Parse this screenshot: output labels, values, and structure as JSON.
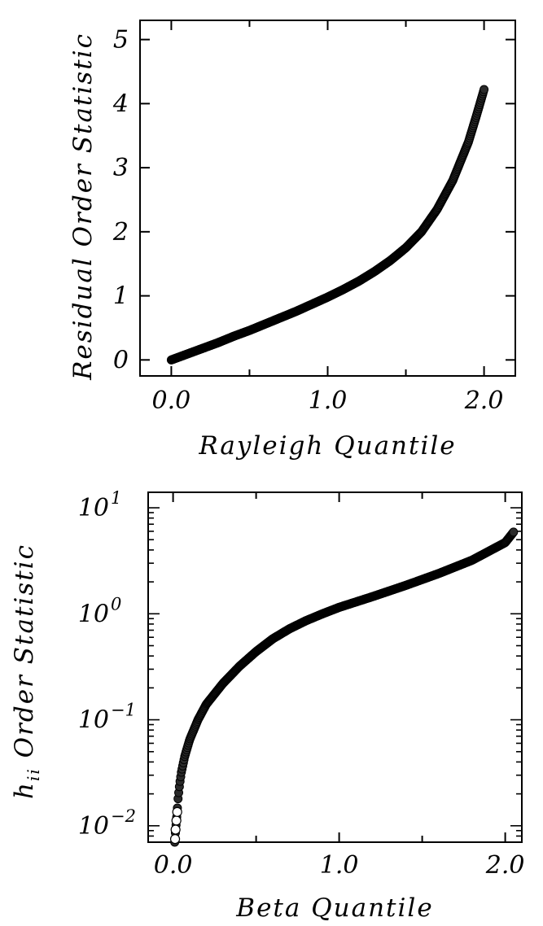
{
  "chart_data": [
    {
      "type": "scatter",
      "title": "",
      "xlabel": "Rayleigh Quantile",
      "ylabel": "Residual Order Statistic",
      "xlim": [
        -0.2,
        2.2
      ],
      "ylim": [
        -0.25,
        5.3
      ],
      "x_ticks": [
        0.0,
        0.5,
        1.0,
        1.5,
        2.0
      ],
      "x_tick_labels": [
        "0.0",
        "",
        "1.0",
        "",
        "2.0"
      ],
      "y_ticks": [
        0,
        1,
        2,
        3,
        4,
        5
      ],
      "y_tick_labels": [
        "0",
        "1",
        "2",
        "3",
        "4",
        "5"
      ],
      "y_scale": "linear",
      "grid": false,
      "marker": "open-circle",
      "series": [
        {
          "x": [
            0.0,
            0.1,
            0.2,
            0.3,
            0.4,
            0.5,
            0.6,
            0.7,
            0.8,
            0.9,
            1.0,
            1.1,
            1.2,
            1.3,
            1.4,
            1.5,
            1.6,
            1.7,
            1.8,
            1.9,
            1.95,
            2.0
          ],
          "y": [
            0.0,
            0.09,
            0.18,
            0.27,
            0.37,
            0.46,
            0.56,
            0.66,
            0.76,
            0.87,
            0.98,
            1.1,
            1.23,
            1.38,
            1.55,
            1.75,
            2.0,
            2.35,
            2.8,
            3.4,
            3.8,
            4.22
          ]
        }
      ]
    },
    {
      "type": "scatter",
      "title": "",
      "xlabel": "Beta Quantile",
      "ylabel_main": "h",
      "ylabel_sub": "ii",
      "ylabel_rest": " Order Statistic",
      "xlim": [
        -0.15,
        2.1
      ],
      "ylim": [
        0.007,
        14
      ],
      "x_ticks": [
        0.0,
        0.5,
        1.0,
        1.5,
        2.0
      ],
      "x_tick_labels": [
        "0.0",
        "",
        "1.0",
        "",
        "2.0"
      ],
      "y_scale": "log",
      "y_major_ticks": [
        0.01,
        0.1,
        1,
        10
      ],
      "y_tick_base": "10",
      "y_tick_exponents": [
        "−2",
        "−1",
        "0",
        "1"
      ],
      "grid": false,
      "marker": "open-circle",
      "series": [
        {
          "x": [
            0.01,
            0.015,
            0.02,
            0.025,
            0.03,
            0.04,
            0.05,
            0.07,
            0.1,
            0.15,
            0.2,
            0.3,
            0.4,
            0.5,
            0.6,
            0.7,
            0.8,
            0.9,
            1.0,
            1.2,
            1.4,
            1.6,
            1.8,
            2.0,
            2.05
          ],
          "y": [
            0.007,
            0.009,
            0.011,
            0.014,
            0.018,
            0.025,
            0.032,
            0.045,
            0.065,
            0.1,
            0.14,
            0.22,
            0.32,
            0.44,
            0.58,
            0.72,
            0.86,
            1.0,
            1.15,
            1.45,
            1.85,
            2.4,
            3.2,
            4.7,
            5.9
          ]
        }
      ]
    }
  ]
}
